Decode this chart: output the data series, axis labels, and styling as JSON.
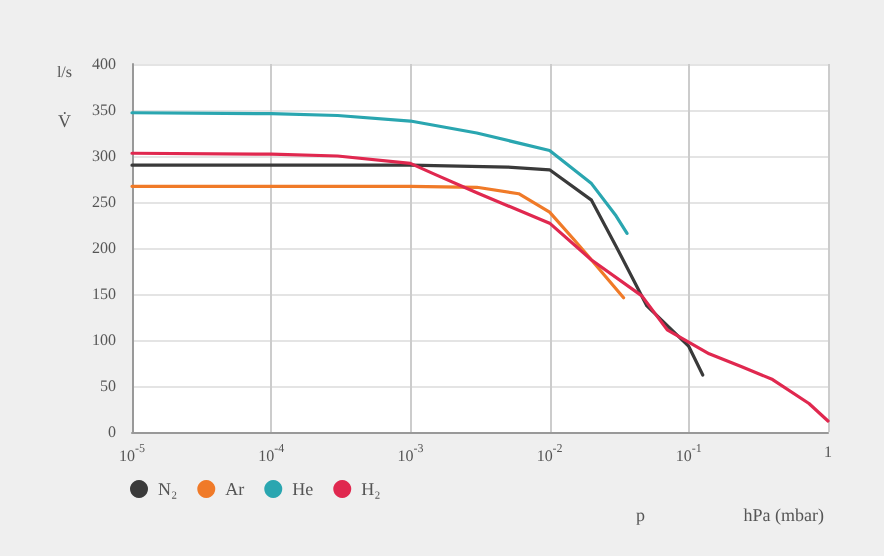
{
  "chart_data": {
    "type": "line",
    "ylabel": "l/s",
    "xlabel": "hPa (mbar)",
    "annotations": [
      "V̇",
      "p"
    ],
    "log": "x",
    "grid": true,
    "legend": "bottom left",
    "marker": "none",
    "line_style": "solid",
    "xlim": [
      1e-05,
      1
    ],
    "xticks": [
      {
        "value": 1e-05,
        "label": "10$^{-5}$"
      },
      {
        "value": 0.0001,
        "label": "10$^{-4}$"
      },
      {
        "value": 0.001,
        "label": "10$^{-3}$"
      },
      {
        "value": 0.01,
        "label": "10$^{-2}$"
      },
      {
        "value": 0.1,
        "label": "10$^{-1}$"
      },
      1
    ],
    "ylim": [
      0,
      400
    ],
    "yticks": [
      0,
      50,
      100,
      150,
      200,
      250,
      300,
      350,
      400
    ],
    "series": [
      {
        "name": "N₂",
        "color": "#3a3a3a",
        "x": [
          1e-05,
          0.001,
          0.005,
          0.01,
          0.02,
          0.03,
          0.05,
          0.1,
          0.126
        ],
        "values": [
          290,
          290,
          288,
          285,
          252,
          202,
          137,
          93,
          62
        ]
      },
      {
        "name": "Ar",
        "color": "#f07a28",
        "x": [
          1e-05,
          0.001,
          0.003,
          0.006,
          0.01,
          0.015,
          0.02,
          0.034
        ],
        "values": [
          267,
          267,
          266,
          259,
          239,
          209,
          187,
          146
        ]
      },
      {
        "name": "He",
        "color": "#2aa6b0",
        "x": [
          1e-05,
          0.0001,
          0.0003,
          0.001,
          0.003,
          0.01,
          0.02,
          0.03,
          0.036
        ],
        "values": [
          347,
          346,
          344,
          338,
          325,
          306,
          270,
          235,
          216
        ]
      },
      {
        "name": "H₂",
        "color": "#e0284f",
        "x": [
          1e-05,
          0.0001,
          0.0003,
          0.001,
          0.0015,
          0.003,
          0.01,
          0.02,
          0.046,
          0.07,
          0.14,
          0.24,
          0.4,
          0.73,
          1
        ],
        "values": [
          303,
          302,
          300,
          292,
          280,
          260,
          227,
          187,
          148,
          111,
          85,
          71,
          57,
          31,
          12
        ]
      }
    ]
  }
}
